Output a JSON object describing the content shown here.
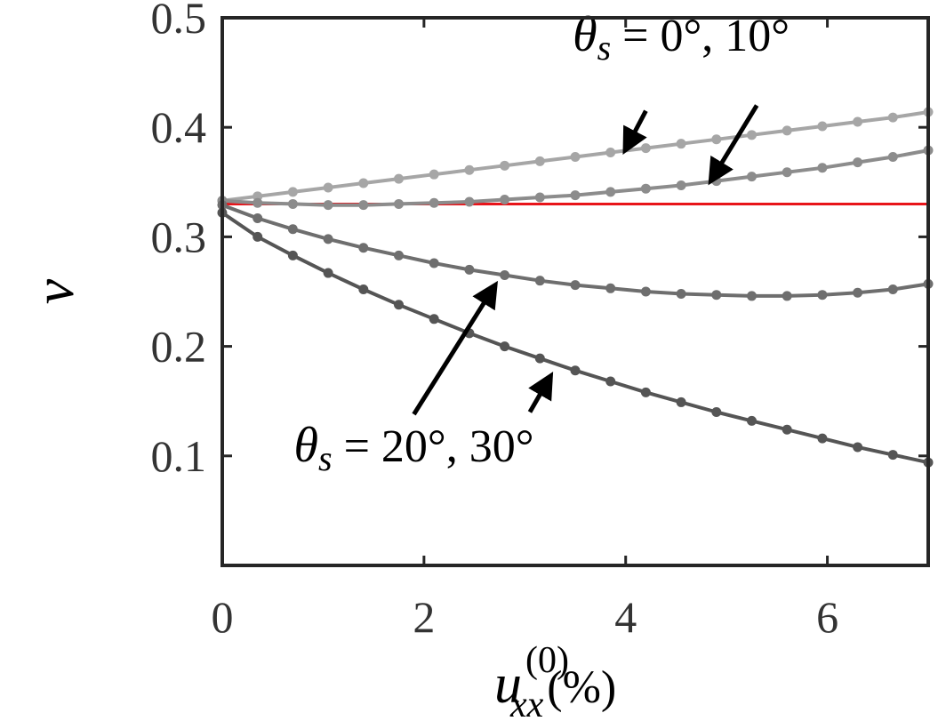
{
  "chart_data": {
    "type": "line",
    "title": "",
    "xlabel": {
      "symbol": "u",
      "superscript": "(0)",
      "subscript": "xx",
      "unit": "(%)"
    },
    "ylabel": "ν",
    "xlim": [
      0,
      7
    ],
    "ylim": [
      0,
      0.5
    ],
    "x_ticks": [
      0,
      2,
      4,
      6
    ],
    "y_ticks": [
      0.1,
      0.2,
      0.3,
      0.4,
      0.5
    ],
    "x_tick_labels": [
      "0",
      "2",
      "4",
      "6"
    ],
    "y_tick_labels": [
      "0.1",
      "0.2",
      "0.3",
      "0.4",
      "0.5"
    ],
    "grid": false,
    "reference_line": {
      "y": 0.33,
      "color": "#e8141a"
    },
    "series": [
      {
        "color": "#a6a6a6",
        "x": [
          0,
          0.35,
          0.7,
          1.05,
          1.4,
          1.75,
          2.1,
          2.45,
          2.8,
          3.15,
          3.5,
          3.85,
          4.2,
          4.55,
          4.9,
          5.25,
          5.6,
          5.95,
          6.3,
          6.65,
          7.0
        ],
        "y": [
          0.333,
          0.337,
          0.341,
          0.345,
          0.349,
          0.353,
          0.357,
          0.361,
          0.365,
          0.369,
          0.373,
          0.377,
          0.381,
          0.385,
          0.389,
          0.393,
          0.397,
          0.401,
          0.405,
          0.409,
          0.414
        ]
      },
      {
        "color": "#8c8c8c",
        "x": [
          0,
          0.35,
          0.7,
          1.05,
          1.4,
          1.75,
          2.1,
          2.45,
          2.8,
          3.15,
          3.5,
          3.85,
          4.2,
          4.55,
          4.9,
          5.25,
          5.6,
          5.95,
          6.3,
          6.65,
          7.0
        ],
        "y": [
          0.333,
          0.331,
          0.33,
          0.329,
          0.329,
          0.33,
          0.331,
          0.332,
          0.334,
          0.336,
          0.338,
          0.341,
          0.344,
          0.347,
          0.351,
          0.355,
          0.359,
          0.363,
          0.368,
          0.373,
          0.379
        ]
      },
      {
        "color": "#6e6e6e",
        "x": [
          0,
          0.35,
          0.7,
          1.05,
          1.4,
          1.75,
          2.1,
          2.45,
          2.8,
          3.15,
          3.5,
          3.85,
          4.2,
          4.55,
          4.9,
          5.25,
          5.6,
          5.95,
          6.3,
          6.65,
          7.0
        ],
        "y": [
          0.329,
          0.317,
          0.307,
          0.298,
          0.29,
          0.283,
          0.276,
          0.27,
          0.265,
          0.26,
          0.256,
          0.253,
          0.25,
          0.248,
          0.247,
          0.246,
          0.246,
          0.247,
          0.249,
          0.252,
          0.257
        ]
      },
      {
        "color": "#555555",
        "x": [
          0,
          0.35,
          0.7,
          1.05,
          1.4,
          1.75,
          2.1,
          2.45,
          2.8,
          3.15,
          3.5,
          3.85,
          4.2,
          4.55,
          4.9,
          5.25,
          5.6,
          5.95,
          6.3,
          6.65,
          7.0
        ],
        "y": [
          0.322,
          0.3,
          0.283,
          0.267,
          0.252,
          0.238,
          0.225,
          0.212,
          0.2,
          0.189,
          0.178,
          0.168,
          0.158,
          0.149,
          0.14,
          0.132,
          0.124,
          0.116,
          0.108,
          0.101,
          0.094
        ]
      }
    ],
    "annotations": [
      {
        "symbol": "θ",
        "subscript": "s",
        "text": " = 0°, 10°",
        "anchor": [
          4.55,
          0.47
        ],
        "arrows": [
          {
            "from": [
              4.2,
              0.415
            ],
            "to": [
              4.0,
              0.38
            ]
          },
          {
            "from": [
              5.3,
              0.42
            ],
            "to": [
              4.85,
              0.352
            ]
          }
        ]
      },
      {
        "symbol": "θ",
        "subscript": "s",
        "text": " = 20°, 30°",
        "anchor": [
          1.9,
          0.095
        ],
        "arrows": [
          {
            "from": [
              1.9,
              0.138
            ],
            "to": [
              2.7,
              0.255
            ]
          },
          {
            "from": [
              3.05,
              0.14
            ],
            "to": [
              3.25,
              0.172
            ]
          }
        ]
      }
    ]
  }
}
